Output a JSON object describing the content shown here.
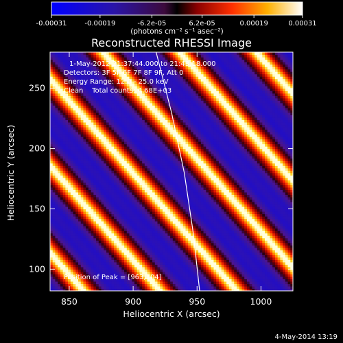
{
  "chart_data": {
    "type": "heatmap",
    "title": "Reconstructed RHESSI Image",
    "xlabel": "Heliocentric X (arcsec)",
    "ylabel": "Heliocentric Y (arcsec)",
    "xlim": [
      835,
      1025
    ],
    "ylim": [
      82,
      280
    ],
    "x_ticks": [
      850,
      900,
      950,
      1000
    ],
    "y_ticks": [
      100,
      150,
      200,
      250
    ],
    "colorbar": {
      "tick_labels": [
        "-0.00031",
        "-0.00019",
        "-6.2e-05",
        "6.2e-05",
        "0.00019",
        "0.00031"
      ],
      "tick_values": [
        -0.00031,
        -0.00019,
        -6.2e-05,
        6.2e-05,
        0.00019,
        0.00031
      ],
      "range": [
        -0.00031,
        0.00031
      ],
      "units": "(photons cm⁻² s⁻¹ asec⁻²)"
    },
    "annotations": [
      "1-May-2012 21:37:44.000 to 21:43:18.000",
      "Detectors: 3F 5F 6F 7F 8F 9F, Att 0",
      "Energy Range: 12.0 - 25.0 keV",
      "Clean    Total counts: 4.68E+03"
    ],
    "peak_label": "Position of Peak = [963,104]",
    "peak": [
      963,
      104
    ],
    "pattern": {
      "description_free": true,
      "stripe_spacing_arcsec": 46,
      "stripe_slope_y_per_x": -1.2,
      "modulation_period_arcsec": 20
    },
    "limb_curve": [
      [
        918,
        280
      ],
      [
        930,
        230
      ],
      [
        940,
        180
      ],
      [
        947,
        130
      ],
      [
        952,
        82
      ]
    ]
  },
  "footer": {
    "date": "4-May-2014 13:19"
  }
}
